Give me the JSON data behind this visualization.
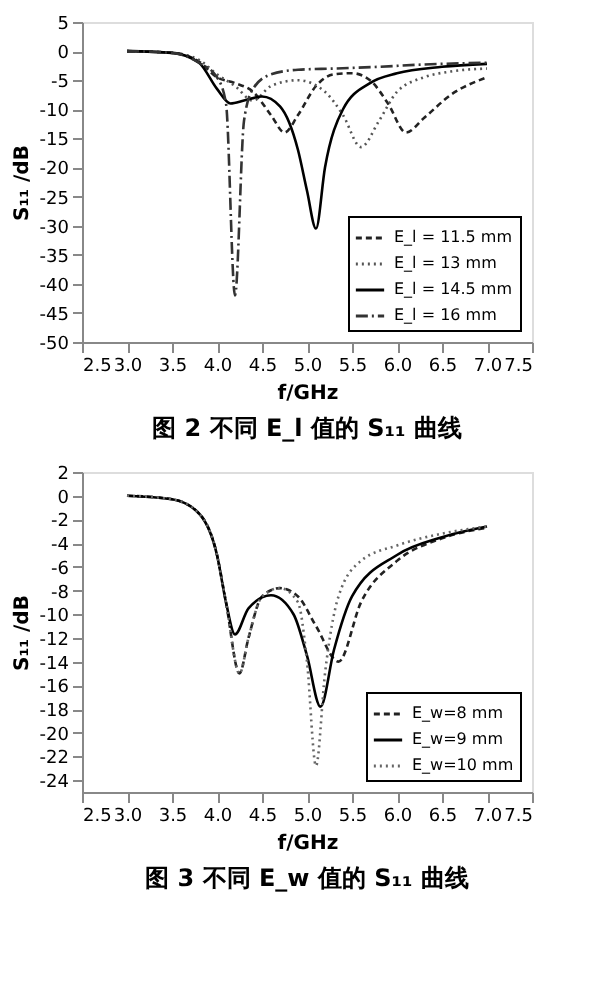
{
  "chart_data": [
    {
      "type": "line",
      "title": "图 2  不同 E_l 值的 S₁₁ 曲线",
      "xlabel": "f/GHz",
      "ylabel": "S₁₁ /dB",
      "xlim": [
        2.5,
        7.5
      ],
      "xticks": [
        {
          "value": 2.5,
          "label": "2.5"
        },
        {
          "value": 3,
          "label": "3.0"
        },
        {
          "value": 3.5,
          "label": "3.5"
        },
        {
          "value": 4,
          "label": "4.0"
        },
        {
          "value": 4.5,
          "label": "4.5"
        },
        {
          "value": 5,
          "label": "5.0"
        },
        {
          "value": 5.5,
          "label": "5.5"
        },
        {
          "value": 6,
          "label": "6.0"
        },
        {
          "value": 6.5,
          "label": "6.5"
        },
        {
          "value": 7,
          "label": "7.0"
        },
        {
          "value": 7.5,
          "label": "7.5"
        }
      ],
      "ylim": [
        -50,
        5
      ],
      "yticks": [
        -50,
        -45,
        -40,
        -35,
        -30,
        -25,
        -20,
        -15,
        -10,
        -5,
        0,
        5
      ],
      "grid": false,
      "legend": "bottom right",
      "series": [
        {
          "name": "E_l = 11.5 mm",
          "color": "#222222",
          "line_style": "dashed",
          "x": [
            3.0,
            3.5,
            3.8,
            4.0,
            4.2,
            4.4,
            4.6,
            4.75,
            4.9,
            5.1,
            5.3,
            5.5,
            5.7,
            5.9,
            6.1,
            6.3,
            6.6,
            7.0
          ],
          "values": [
            0,
            -0.3,
            -1.8,
            -4.5,
            -5.5,
            -7,
            -11,
            -14,
            -11,
            -6,
            -4,
            -3.8,
            -5,
            -9,
            -14,
            -11.5,
            -7.5,
            -4.5
          ]
        },
        {
          "name": "E_l = 13 mm",
          "color": "#555555",
          "line_style": "dotted",
          "x": [
            3.0,
            3.5,
            3.8,
            4.0,
            4.2,
            4.4,
            4.6,
            4.9,
            5.2,
            5.4,
            5.6,
            5.8,
            6.0,
            6.3,
            6.6,
            7.0
          ],
          "values": [
            0,
            -0.3,
            -1.5,
            -4,
            -6,
            -8.5,
            -6,
            -5,
            -7,
            -11,
            -16.5,
            -12,
            -7,
            -4.5,
            -3.5,
            -3
          ]
        },
        {
          "name": "E_l = 14.5 mm",
          "color": "#000000",
          "line_style": "solid",
          "x": [
            3.0,
            3.5,
            3.8,
            4.0,
            4.15,
            4.3,
            4.5,
            4.7,
            4.9,
            5.0,
            5.1,
            5.2,
            5.4,
            5.7,
            6.0,
            6.5,
            7.0
          ],
          "values": [
            0,
            -0.3,
            -2,
            -6.5,
            -9,
            -8.5,
            -7.8,
            -9.5,
            -17,
            -24,
            -30.5,
            -20,
            -10,
            -5.5,
            -3.8,
            -2.7,
            -2.2
          ]
        },
        {
          "name": "E_l = 16 mm",
          "color": "#333333",
          "line_style": "dashdot",
          "x": [
            3.0,
            3.5,
            3.8,
            4.0,
            4.1,
            4.2,
            4.3,
            4.4,
            4.6,
            4.9,
            5.3,
            5.8,
            6.3,
            7.0
          ],
          "values": [
            0,
            -0.3,
            -2,
            -4.5,
            -9,
            -42,
            -12,
            -6.5,
            -4,
            -3.2,
            -3,
            -2.7,
            -2.3,
            -2
          ]
        }
      ]
    },
    {
      "type": "line",
      "title": "图 3  不同 E_w 值的 S₁₁ 曲线",
      "xlabel": "f/GHz",
      "ylabel": "S₁₁ /dB",
      "xlim": [
        2.5,
        7.5
      ],
      "xticks": [
        {
          "value": 2.5,
          "label": "2.5"
        },
        {
          "value": 3,
          "label": "3.0"
        },
        {
          "value": 3.5,
          "label": "3.5"
        },
        {
          "value": 4,
          "label": "4.0"
        },
        {
          "value": 4.5,
          "label": "4.5"
        },
        {
          "value": 5,
          "label": "5.0"
        },
        {
          "value": 5.5,
          "label": "5.5"
        },
        {
          "value": 6,
          "label": "6.0"
        },
        {
          "value": 6.5,
          "label": "6.5"
        },
        {
          "value": 7,
          "label": "7.0"
        },
        {
          "value": 7.5,
          "label": "7.5"
        }
      ],
      "ylim": [
        -25,
        2
      ],
      "yticks": [
        -24,
        -22,
        -20,
        -18,
        -16,
        -14,
        -12,
        -10,
        -8,
        -6,
        -4,
        -2,
        0,
        2
      ],
      "grid": false,
      "legend": "bottom right",
      "series": [
        {
          "name": "E_w=8 mm",
          "color": "#222222",
          "line_style": "dashed",
          "x": [
            3.0,
            3.5,
            3.8,
            4.0,
            4.1,
            4.25,
            4.35,
            4.5,
            4.7,
            4.9,
            5.1,
            5.35,
            5.6,
            6.0,
            6.5,
            7.0
          ],
          "values": [
            0,
            -0.3,
            -1.5,
            -5,
            -9,
            -15,
            -12,
            -8.5,
            -7.8,
            -8.5,
            -11,
            -14,
            -9,
            -5.5,
            -3.6,
            -2.7
          ]
        },
        {
          "name": "E_w=9 mm",
          "color": "#000000",
          "line_style": "solid",
          "x": [
            3.0,
            3.5,
            3.8,
            4.0,
            4.1,
            4.2,
            4.35,
            4.6,
            4.85,
            5.0,
            5.15,
            5.3,
            5.5,
            6.0,
            6.5,
            7.0
          ],
          "values": [
            0,
            -0.3,
            -1.5,
            -5,
            -9,
            -11.7,
            -9.5,
            -8.4,
            -10,
            -13.5,
            -17.8,
            -13,
            -8.5,
            -5,
            -3.5,
            -2.6
          ]
        },
        {
          "name": "E_w=10 mm",
          "color": "#666666",
          "line_style": "dotted",
          "x": [
            3.0,
            3.5,
            3.8,
            4.0,
            4.1,
            4.25,
            4.35,
            4.5,
            4.7,
            4.9,
            5.0,
            5.1,
            5.2,
            5.35,
            5.6,
            6.0,
            6.5,
            7.0
          ],
          "values": [
            0,
            -0.3,
            -1.5,
            -5,
            -9,
            -15,
            -12,
            -8.5,
            -7.8,
            -9,
            -14,
            -22.8,
            -15,
            -8.5,
            -5.5,
            -4.2,
            -3.2,
            -2.6
          ]
        }
      ]
    }
  ]
}
